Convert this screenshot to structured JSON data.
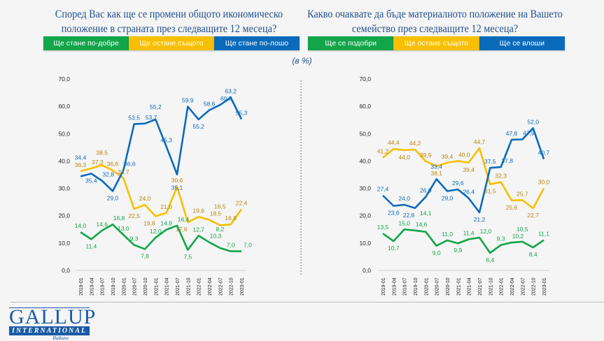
{
  "colors": {
    "green": "#12a54a",
    "yellow": "#f8bf00",
    "blue": "#0b6bbb",
    "yellow_label": "#b8860b"
  },
  "unit": "(в %)",
  "logo": {
    "name": "GALLUP",
    "sub": "INTERNATIONAL",
    "region": "Balkans"
  },
  "chart_data": [
    {
      "type": "line",
      "title": "Според Вас как ще се промени общото икономическо положение в страната през следващите 12 месеца?",
      "legend": [
        "Ще стане по-добре",
        "Ще остане същото",
        "Ще стане по-лошо"
      ],
      "ylim": [
        0,
        70
      ],
      "yticks": [
        "0,0",
        "10,0",
        "20,0",
        "30,0",
        "40,0",
        "50,0",
        "60,0",
        "70,0"
      ],
      "categories": [
        "2019-01",
        "2019-04",
        "2019-07",
        "2019-10",
        "2020-01",
        "2020-07",
        "2020-10",
        "2021-01",
        "2021-04",
        "2021-07",
        "2021-10",
        "2022-01",
        "2022-04",
        "2022-07",
        "2022-10",
        "2023-01"
      ],
      "series": [
        {
          "name": "Ще стане по-добре",
          "color": "green",
          "values": [
            14.0,
            11.4,
            14.6,
            16.8,
            13.0,
            9.3,
            7.8,
            12.0,
            14.9,
            16.4,
            7.5,
            12.7,
            10.3,
            8.2,
            7.0,
            7.0
          ]
        },
        {
          "name": "Ще остане същото",
          "color": "yellow",
          "values": [
            36.3,
            37.3,
            38.5,
            36.6,
            33.7,
            22.5,
            24.0,
            19.8,
            21.0,
            30.6,
            17.6,
            19.6,
            18.5,
            16.5,
            16.8,
            22.4
          ]
        },
        {
          "name": "Ще стане по-лошо",
          "color": "blue",
          "values": [
            34.4,
            35.4,
            32.8,
            29.0,
            36.6,
            53.5,
            53.7,
            55.2,
            45.3,
            35.1,
            59.9,
            55.2,
            58.6,
            60.5,
            63.2,
            55.3
          ]
        }
      ]
    },
    {
      "type": "line",
      "title": "Какво очаквате да бъде материалното положение на Вашето семейство през следващите 12 месеца?",
      "legend": [
        "Ще се подобри",
        "Ще остане същото",
        "Ще се влоши"
      ],
      "ylim": [
        0,
        70
      ],
      "yticks": [
        "0,0",
        "10,0",
        "20,0",
        "30,0",
        "40,0",
        "50,0",
        "60,0",
        "70,0"
      ],
      "categories": [
        "2019-01",
        "2019-04",
        "2019-07",
        "2019-10",
        "2020-01",
        "2020-07",
        "2020-10",
        "2021-01",
        "2021-04",
        "2021-07",
        "2021-10",
        "2022-01",
        "2022-04",
        "2022-07",
        "2022-10",
        "2023-01"
      ],
      "series": [
        {
          "name": "Ще се подобри",
          "color": "green",
          "values": [
            13.5,
            10.7,
            15.0,
            14.6,
            14.1,
            9.0,
            11.0,
            9.9,
            11.4,
            12.0,
            6.4,
            9.3,
            10.2,
            10.5,
            8.4,
            11.1
          ]
        },
        {
          "name": "Ще остане същото",
          "color": "yellow",
          "values": [
            41.2,
            44.4,
            44.0,
            44.2,
            39.9,
            38.1,
            39.4,
            40.0,
            39.4,
            44.7,
            31.5,
            32.3,
            25.6,
            25.7,
            22.7,
            30.0
          ]
        },
        {
          "name": "Ще се влоши",
          "color": "blue",
          "values": [
            27.4,
            23.6,
            24.0,
            22.8,
            26.9,
            33.4,
            29.0,
            29.6,
            26.4,
            21.2,
            37.5,
            37.8,
            47.8,
            47.9,
            52.0,
            40.7
          ]
        }
      ]
    }
  ]
}
